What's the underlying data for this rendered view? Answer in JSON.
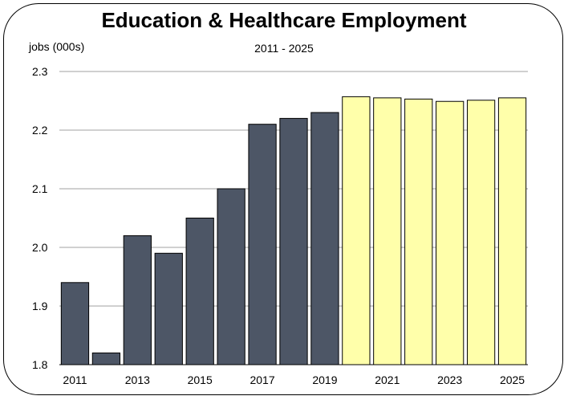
{
  "chart_data": {
    "type": "bar",
    "title": "Education & Healthcare Employment",
    "subtitle": "2011 - 2025",
    "ylabel": "jobs (000s)",
    "xlabel": "",
    "ylim": [
      1.8,
      2.3
    ],
    "yticks": [
      "1.8",
      "1.9",
      "2.0",
      "2.1",
      "2.2",
      "2.3"
    ],
    "categories": [
      "2011",
      "2012",
      "2013",
      "2014",
      "2015",
      "2016",
      "2017",
      "2018",
      "2019",
      "2020",
      "2021",
      "2022",
      "2023",
      "2024",
      "2025"
    ],
    "x_tick_labels": [
      "2011",
      "2013",
      "2015",
      "2017",
      "2019",
      "2021",
      "2023",
      "2025"
    ],
    "values": [
      1.94,
      1.82,
      2.02,
      1.99,
      2.05,
      2.1,
      2.21,
      2.22,
      2.23,
      2.257,
      2.255,
      2.253,
      2.249,
      2.251,
      2.255
    ],
    "historical_color": "#4d5666",
    "forecast_color": "#ffffaa",
    "forecast_start_index": 9,
    "grid": "horizontal"
  }
}
